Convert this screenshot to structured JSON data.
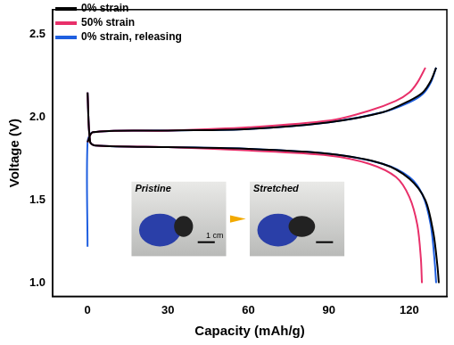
{
  "chart_data": {
    "type": "line",
    "x_label": "Capacity (mAh/g)",
    "y_label": "Voltage (V)",
    "xlim": [
      -13,
      134
    ],
    "xticks": [
      0,
      30,
      60,
      90,
      120
    ],
    "ylim": [
      0.92,
      2.65
    ],
    "yticks": [
      {
        "value": 1,
        "label": "1.0"
      },
      {
        "value": 1.5,
        "label": "1.5"
      },
      {
        "value": 2,
        "label": "2.0"
      },
      {
        "value": 2.5,
        "label": "2.5"
      }
    ],
    "grid": false,
    "legend": "top-left",
    "annotations": [
      "Pristine",
      "Stretched",
      "1 cm"
    ],
    "series": [
      {
        "name": "0% strain",
        "color": "#000000",
        "x": [
          0,
          2,
          30,
          60,
          90,
          110,
          120,
          125,
          128,
          130,
          null,
          0,
          1,
          3,
          30,
          60,
          90,
          110,
          120,
          126,
          129,
          130.5,
          131
        ],
        "values": [
          1.85,
          1.91,
          1.92,
          1.93,
          1.97,
          2.03,
          2.1,
          2.15,
          2.22,
          2.3,
          null,
          2.15,
          1.85,
          1.83,
          1.82,
          1.81,
          1.78,
          1.72,
          1.63,
          1.5,
          1.3,
          1.1,
          1.0
        ]
      },
      {
        "name": "50% strain",
        "color": "#e8306a",
        "x": [
          0,
          2,
          30,
          60,
          90,
          105,
          115,
          120,
          123,
          126,
          null,
          0,
          1,
          3,
          30,
          60,
          90,
          105,
          115,
          120,
          123,
          124.3,
          124.7
        ],
        "values": [
          1.85,
          1.91,
          1.92,
          1.94,
          1.98,
          2.04,
          2.1,
          2.15,
          2.21,
          2.3,
          null,
          2.15,
          1.85,
          1.83,
          1.82,
          1.8,
          1.77,
          1.72,
          1.64,
          1.52,
          1.35,
          1.15,
          1.0
        ]
      },
      {
        "name": "0% strain, releasing",
        "color": "#1f5fe0",
        "x": [
          0,
          0,
          2,
          30,
          60,
          90,
          110,
          120,
          125,
          128,
          130,
          null,
          0,
          1,
          3,
          30,
          60,
          90,
          110,
          120,
          125,
          128,
          129.5,
          130
        ],
        "values": [
          1.22,
          1.85,
          1.91,
          1.92,
          1.93,
          1.97,
          2.03,
          2.09,
          2.14,
          2.21,
          2.3,
          null,
          2.15,
          1.85,
          1.83,
          1.82,
          1.81,
          1.78,
          1.72,
          1.64,
          1.53,
          1.35,
          1.12,
          1.0
        ]
      }
    ]
  }
}
